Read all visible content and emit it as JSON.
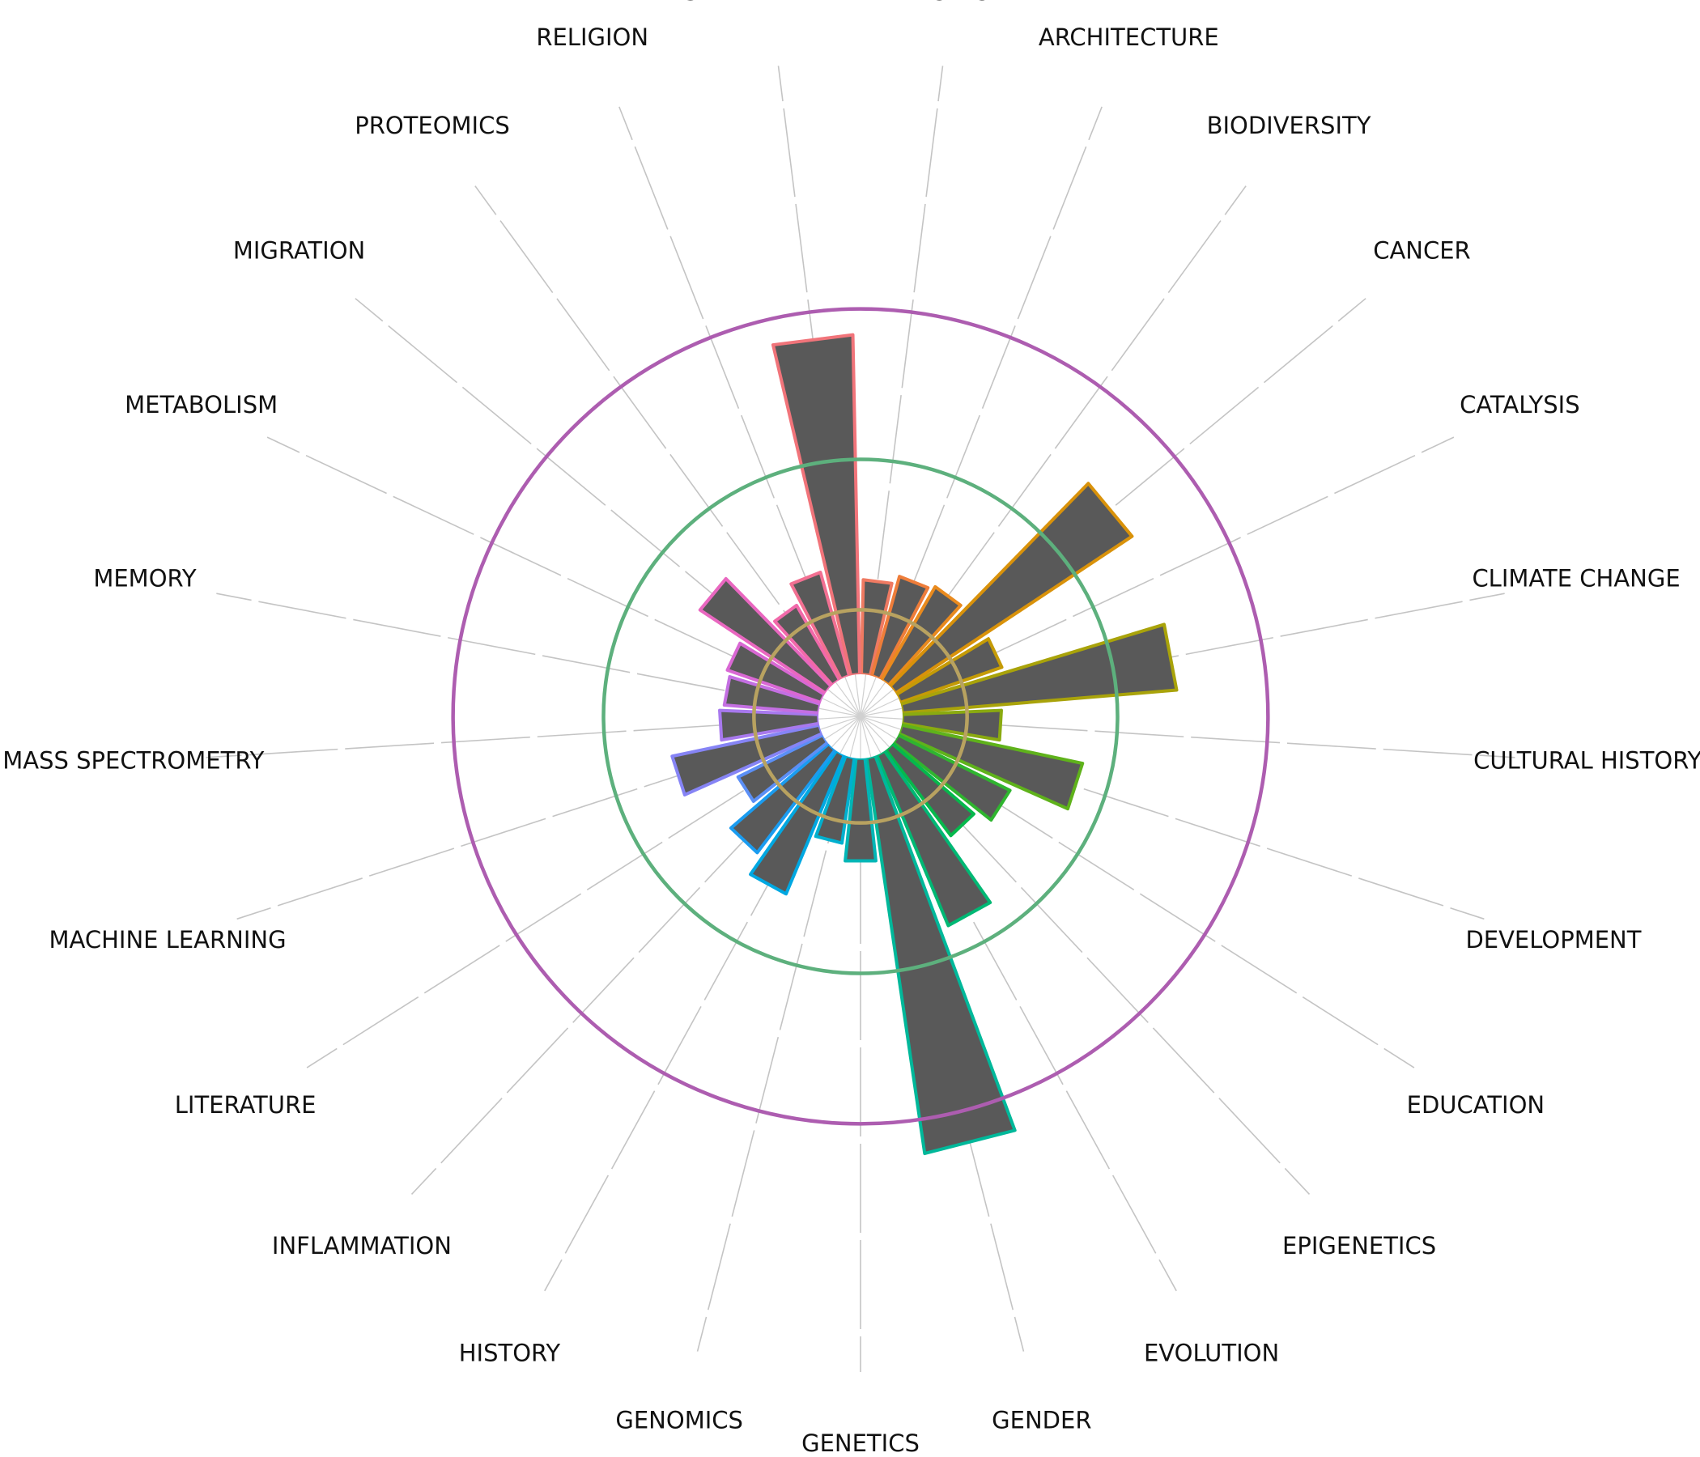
{
  "chart_data": {
    "type": "bar",
    "polar": true,
    "title": "",
    "categories": [
      "AGING",
      "ARCHITECTURE",
      "BIODIVERSITY",
      "CANCER",
      "CATALYSIS",
      "CLIMATE CHANGE",
      "CULTURAL HISTORY",
      "DEVELOPMENT",
      "EDUCATION",
      "EPIGENETICS",
      "EVOLUTION",
      "GENDER",
      "GENETICS",
      "GENOMICS",
      "HISTORY",
      "INFLAMMATION",
      "LITERATURE",
      "MACHINE LEARNING",
      "MASS SPECTROMETRY",
      "MEMORY",
      "METABOLISM",
      "MIGRATION",
      "PROTEOMICS",
      "RELIGION",
      "SWITZERLAND"
    ],
    "values": [
      22,
      24,
      25,
      66,
      25,
      64,
      23,
      43,
      29,
      25,
      43,
      93,
      24,
      20,
      35,
      30,
      22,
      35,
      23,
      22,
      23,
      35,
      20,
      25,
      79
    ],
    "bar_colors": [
      "#ef7a62",
      "#ee7d3a",
      "#e98a1e",
      "#d9920a",
      "#c59b06",
      "#a9a30a",
      "#8aaa10",
      "#5fb21b",
      "#2fb52f",
      "#06b84c",
      "#00b874",
      "#00b89a",
      "#00b6b6",
      "#00b0cf",
      "#00a8e2",
      "#1a9cf0",
      "#5b8ff6",
      "#8684f5",
      "#a879ee",
      "#c46fe2",
      "#d968d4",
      "#e967c0",
      "#f169aa",
      "#f27092",
      "#f1747a"
    ],
    "reference_circles": [
      {
        "value": 15,
        "color": "#b8a260"
      },
      {
        "value": 50,
        "color": "#5db07d"
      },
      {
        "value": 85,
        "color": "#ad5db0"
      }
    ],
    "bar_fill": "#595959",
    "rlim": [
      0,
      100
    ],
    "grid": true,
    "legend": "none"
  }
}
